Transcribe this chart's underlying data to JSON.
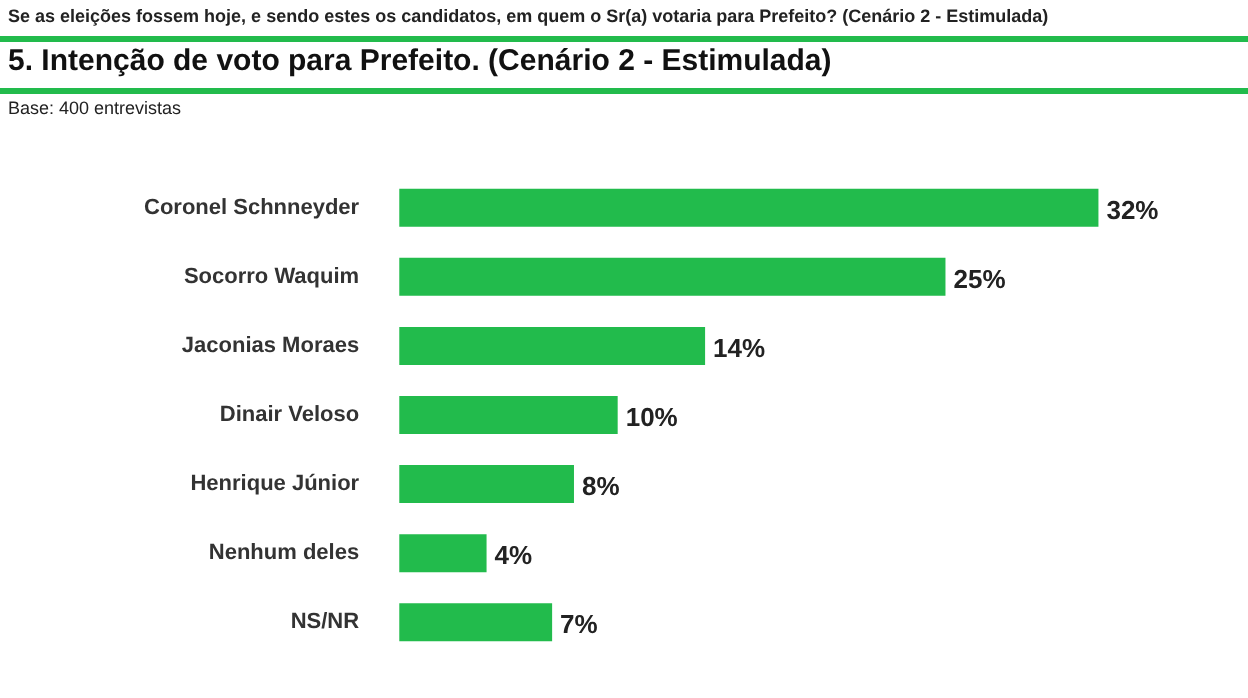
{
  "chart_data": {
    "type": "bar",
    "orientation": "horizontal",
    "title": "5. Intenção de voto para Prefeito. (Cenário 2 - Estimulada)",
    "annotations": [
      "Se as eleições fossem hoje, e sendo estes os candidatos, em quem o Sr(a) votaria para Prefeito? (Cenário 2 - Estimulada)",
      "Base: 400 entrevistas"
    ],
    "categories": [
      "Coronel Schnneyder",
      "Socorro Waquim",
      "Jaconias Moraes",
      "Dinair Veloso",
      "Henrique Júnior",
      "Nenhum deles",
      "NS/NR"
    ],
    "values": [
      32,
      25,
      14,
      10,
      8,
      4,
      7
    ],
    "value_labels": [
      "32%",
      "25%",
      "14%",
      "10%",
      "8%",
      "4%",
      "7%"
    ],
    "color": "#22bb4c"
  }
}
